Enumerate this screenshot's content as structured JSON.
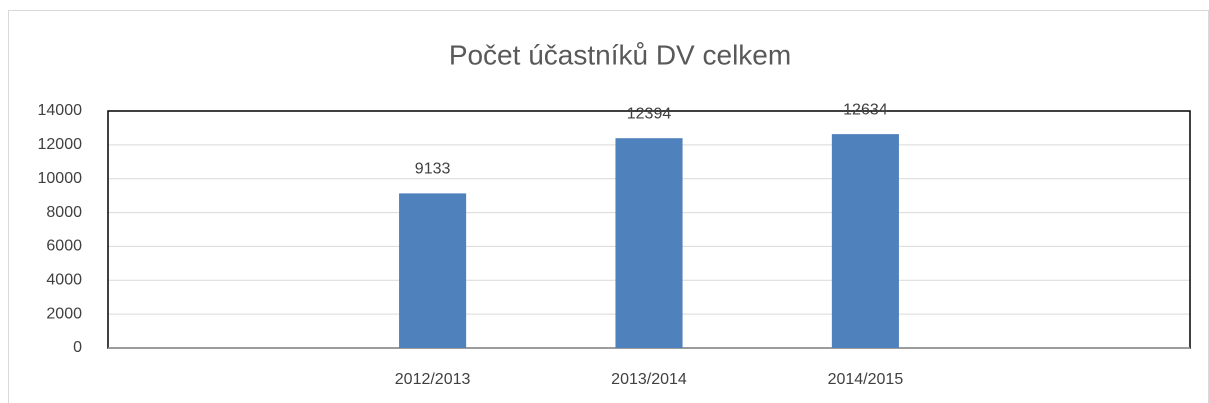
{
  "chart_data": {
    "type": "bar",
    "title": "Počet účastníků DV celkem",
    "categories": [
      null,
      "2012/2013",
      "2013/2014",
      "2014/2015",
      null
    ],
    "values": [
      null,
      9133,
      12394,
      12634,
      null
    ],
    "color": "#4f81bd",
    "ylim": [
      0,
      14000
    ],
    "yticks": [
      0,
      2000,
      4000,
      6000,
      8000,
      10000,
      12000,
      14000
    ],
    "grid": true
  }
}
